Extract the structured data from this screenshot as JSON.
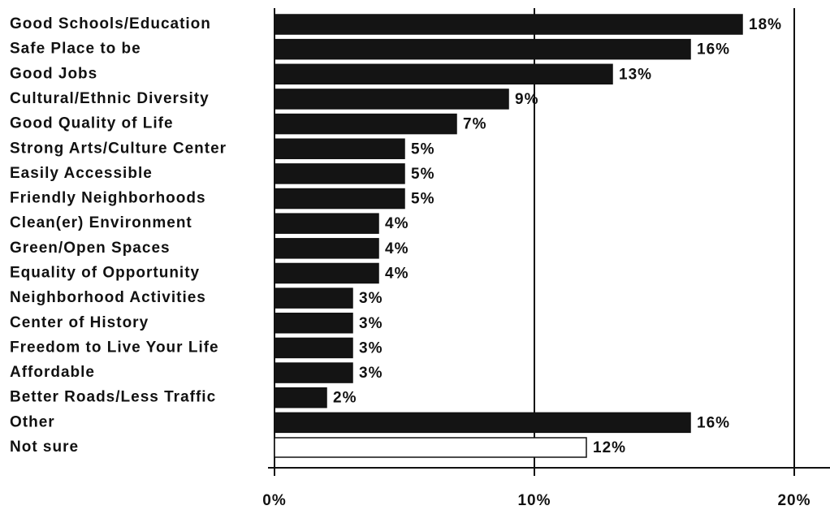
{
  "chart_data": {
    "type": "barh",
    "categories": [
      "Good Schools/Education",
      "Safe Place to be",
      "Good Jobs",
      "Cultural/Ethnic Diversity",
      "Good Quality of Life",
      "Strong Arts/Culture Center",
      "Easily Accessible",
      "Friendly Neighborhoods",
      "Clean(er) Environment",
      "Green/Open Spaces",
      "Equality of Opportunity",
      "Neighborhood Activities",
      "Center of History",
      "Freedom to Live Your Life",
      "Affordable",
      "Better Roads/Less Traffic",
      "Other",
      "Not sure"
    ],
    "values": [
      18,
      16,
      13,
      9,
      7,
      5,
      5,
      5,
      4,
      4,
      4,
      3,
      3,
      3,
      3,
      2,
      16,
      12
    ],
    "value_labels": [
      "18%",
      "16%",
      "13%",
      "9%",
      "7%",
      "5%",
      "5%",
      "5%",
      "4%",
      "4%",
      "4%",
      "3%",
      "3%",
      "3%",
      "3%",
      "2%",
      "16%",
      "12%"
    ],
    "colors": [
      "#141414",
      "#141414",
      "#141414",
      "#141414",
      "#141414",
      "#141414",
      "#141414",
      "#141414",
      "#141414",
      "#141414",
      "#141414",
      "#141414",
      "#141414",
      "#141414",
      "#141414",
      "#141414",
      "#141414",
      "#ffffff"
    ],
    "xlim": [
      0,
      20
    ],
    "xticks": [
      {
        "value": 0,
        "label": "0%"
      },
      {
        "value": 10,
        "label": "10%"
      },
      {
        "value": 20,
        "label": "20%"
      }
    ],
    "grid": true
  }
}
